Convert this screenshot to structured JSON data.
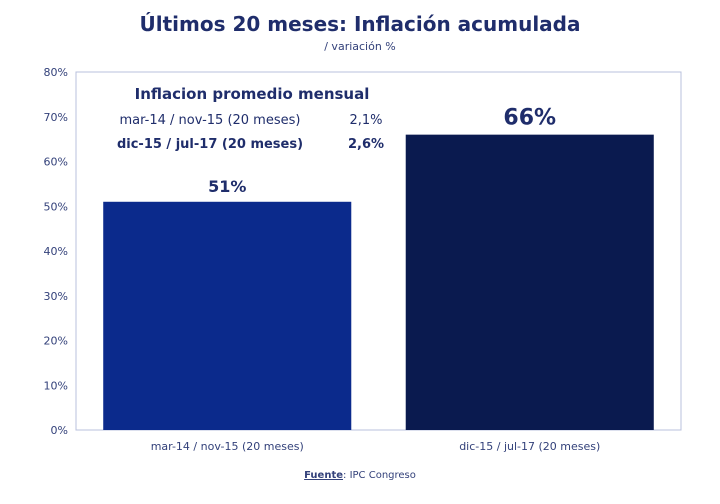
{
  "chart_data": {
    "type": "bar",
    "title": "Últimos 20 meses: Inflación acumulada",
    "subtitle": "/ variación %",
    "categories": [
      "mar-14 / nov-15 (20 meses)",
      "dic-15 / jul-17 (20 meses)"
    ],
    "values": [
      51,
      66
    ],
    "data_labels": [
      "51%",
      "66%"
    ],
    "bar_colors": [
      "#0b2a8c",
      "#0a1a4f"
    ],
    "ylim": [
      0,
      80
    ],
    "yticks": [
      "0%",
      "10%",
      "20%",
      "30%",
      "40%",
      "50%",
      "60%",
      "70%",
      "80%"
    ],
    "grid": false,
    "annotation": {
      "title": "Inflacion promedio mensual",
      "rows": [
        {
          "label": "mar-14 / nov-15 (20 meses)",
          "value": "2,1%"
        },
        {
          "label": "dic-15 / jul-17 (20 meses)",
          "value": "2,6%"
        }
      ]
    },
    "source": {
      "label": "Fuente",
      "text": "IPC Congreso"
    }
  }
}
